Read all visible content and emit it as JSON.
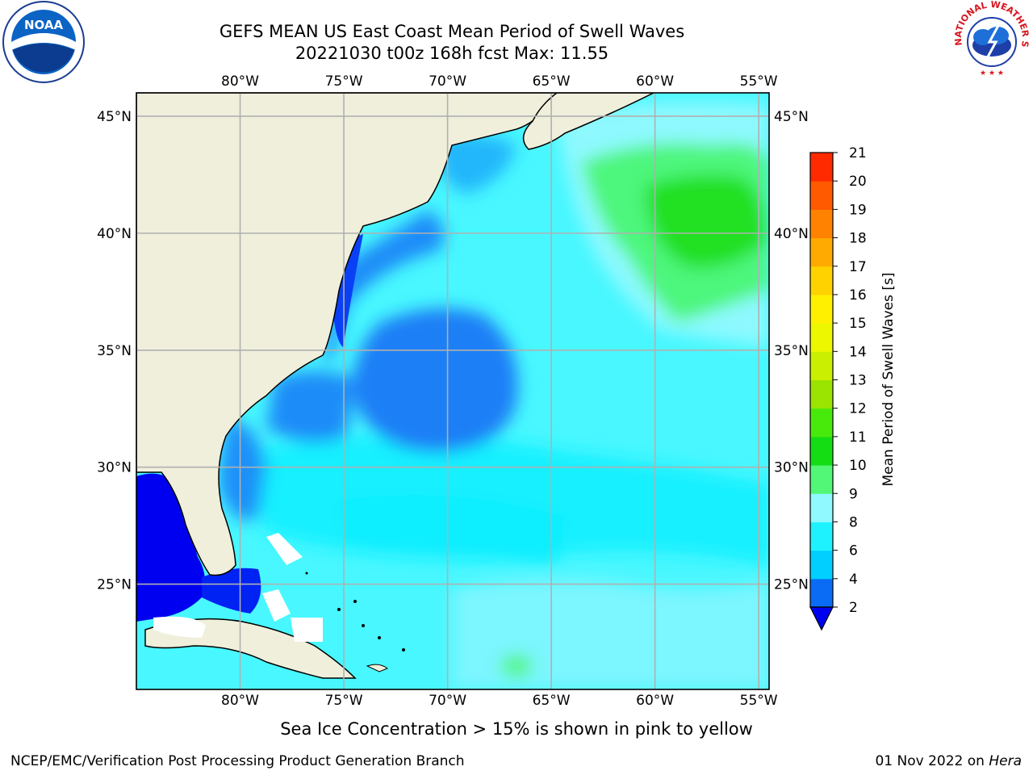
{
  "title": {
    "line1": "GEFS MEAN US East Coast Mean Period of Swell Waves",
    "line2": "20221030 t00z 168h fcst   Max: 11.55"
  },
  "map": {
    "lon_labels": [
      "80°W",
      "75°W",
      "70°W",
      "65°W",
      "60°W",
      "55°W"
    ],
    "lat_labels": [
      "45°N",
      "40°N",
      "35°N",
      "30°N",
      "25°N"
    ],
    "lon_range": [
      -85,
      -54.5
    ],
    "lat_range": [
      20.5,
      46
    ]
  },
  "colorbar": {
    "label": "Mean Period of Swell Waves [s]",
    "ticks": [
      "2",
      "4",
      "6",
      "8",
      "9",
      "10",
      "11",
      "12",
      "13",
      "14",
      "15",
      "16",
      "17",
      "18",
      "19",
      "20",
      "21"
    ],
    "colors": [
      "#0a6cf5",
      "#00cfff",
      "#1ef2ff",
      "#8ff9ff",
      "#52f777",
      "#14dd14",
      "#48ea0c",
      "#9be300",
      "#cbef00",
      "#ecf700",
      "#fff000",
      "#ffd200",
      "#ffaa00",
      "#ff8200",
      "#ff5a00",
      "#ff2a00"
    ],
    "extend_color": "#0000f0"
  },
  "caption": "Sea Ice Concentration > 15% is shown in pink to yellow",
  "footer": {
    "left": "NCEP/EMC/Verification Post Processing Product Generation Branch",
    "right_date": "01 Nov 2022 on ",
    "right_machine": "Hera"
  },
  "logos": {
    "noaa_text": "NOAA",
    "nws_text": "NATIONAL WEATHER SERVICE"
  }
}
